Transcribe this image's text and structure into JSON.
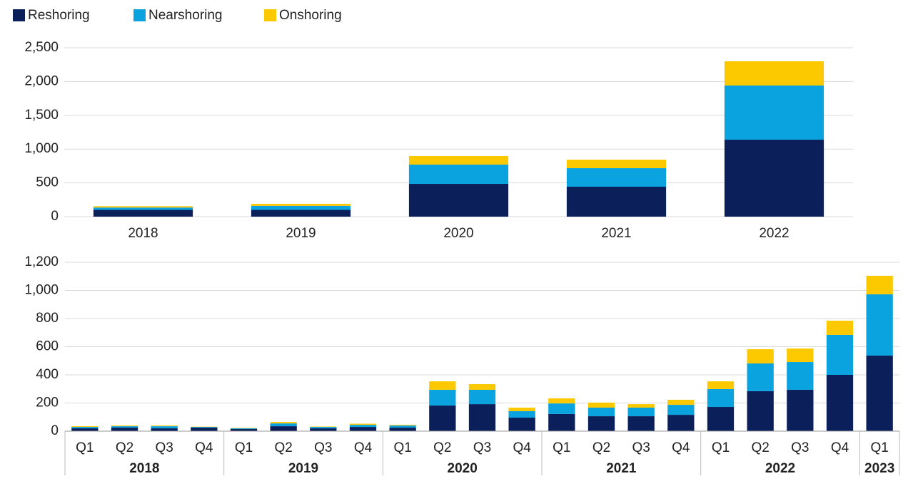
{
  "chart_data": [
    {
      "type": "stacked_bar",
      "categories": [
        "2018",
        "2019",
        "2020",
        "2021",
        "2022"
      ],
      "series": [
        {
          "name": "Reshoring",
          "color": "#0b1f5b",
          "values": [
            100,
            100,
            485,
            443,
            1139
          ]
        },
        {
          "name": "Nearshoring",
          "color": "#0aa3df",
          "values": [
            35,
            60,
            285,
            274,
            802
          ]
        },
        {
          "name": "Onshoring",
          "color": "#fcc900",
          "values": [
            20,
            30,
            127,
            127,
            359
          ]
        }
      ],
      "ylim": [
        0,
        2500
      ],
      "yticks": [
        0,
        {
          "value": 500,
          "label": "500"
        },
        {
          "value": 1000,
          "label": "1,000"
        },
        {
          "value": 1500,
          "label": "1,500"
        },
        {
          "value": 2000,
          "label": "2,000"
        },
        {
          "value": 2500,
          "label": "2,500"
        }
      ],
      "grid": true
    },
    {
      "type": "stacked_bar",
      "category_groups": [
        {
          "label": "2018",
          "categories": [
            "Q1",
            "Q2",
            "Q3",
            "Q4"
          ]
        },
        {
          "label": "2019",
          "categories": [
            "Q1",
            "Q2",
            "Q3",
            "Q4"
          ]
        },
        {
          "label": "2020",
          "categories": [
            "Q1",
            "Q2",
            "Q3",
            "Q4"
          ]
        },
        {
          "label": "2021",
          "categories": [
            "Q1",
            "Q2",
            "Q3",
            "Q4"
          ]
        },
        {
          "label": "2022",
          "categories": [
            "Q1",
            "Q2",
            "Q3",
            "Q4"
          ]
        },
        {
          "label": "2023",
          "categories": [
            "Q1"
          ]
        }
      ],
      "series": [
        {
          "color": "#0b1f5b",
          "values": [
            20,
            25,
            20,
            25,
            15,
            35,
            20,
            30,
            25,
            182,
            192,
            96,
            122,
            106,
            106,
            116,
            172,
            284,
            294,
            400,
            537
          ]
        },
        {
          "color": "#0aa3df",
          "values": [
            10,
            10,
            15,
            5,
            5,
            20,
            10,
            15,
            15,
            112,
            102,
            46,
            75,
            61,
            61,
            71,
            127,
            197,
            197,
            284,
            435
          ]
        },
        {
          "color": "#fcc900",
          "values": [
            5,
            5,
            5,
            2,
            3,
            10,
            3,
            8,
            5,
            60,
            40,
            25,
            36,
            36,
            25,
            36,
            55,
            101,
            96,
            101,
            132
          ]
        }
      ],
      "ylim": [
        0,
        1200
      ],
      "yticks": [
        0,
        200,
        400,
        600,
        800,
        {
          "value": 1000,
          "label": "1,000"
        },
        {
          "value": 1200,
          "label": "1,200"
        }
      ],
      "grid": true
    }
  ]
}
